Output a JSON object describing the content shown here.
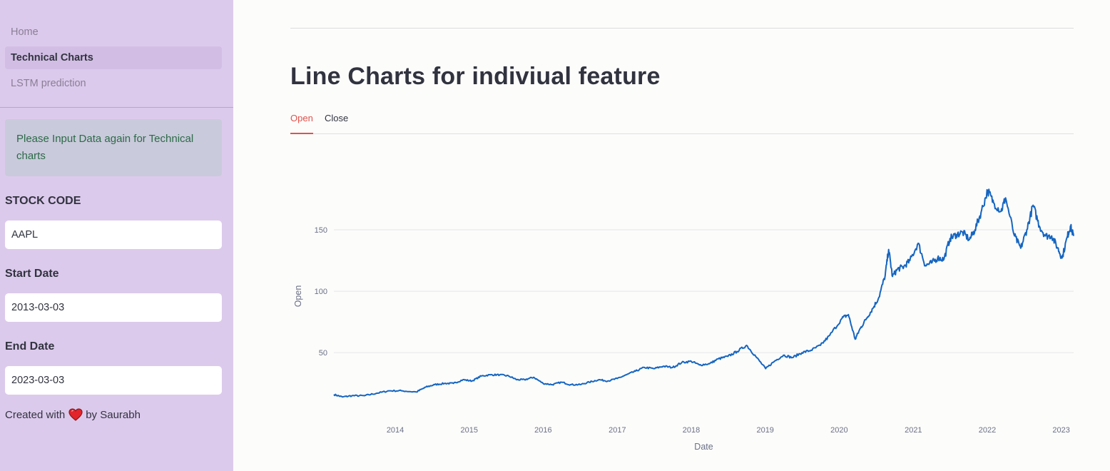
{
  "sidebar": {
    "nav_items": [
      {
        "label": "Home",
        "active": false
      },
      {
        "label": "Technical Charts",
        "active": true
      },
      {
        "label": "LSTM prediction",
        "active": false
      }
    ],
    "info_message": "Please Input Data again for Technical charts",
    "fields": {
      "stock_code": {
        "label": "STOCK CODE",
        "value": "AAPL"
      },
      "start_date": {
        "label": "Start Date",
        "value": "2013-03-03"
      },
      "end_date": {
        "label": "End Date",
        "value": "2023-03-03"
      }
    },
    "credit": {
      "prefix": "Created with",
      "suffix": "by Saurabh",
      "icon": "heart-icon"
    }
  },
  "main": {
    "title": "Line Charts for indiviual feature",
    "tabs": [
      {
        "label": "Open",
        "active": true
      },
      {
        "label": "Close",
        "active": false
      }
    ]
  },
  "colors": {
    "sidebar_bg": "#dccaec",
    "accent": "#e0524b",
    "line": "#1565c0",
    "info_text": "#2c6a48"
  },
  "chart_data": {
    "type": "line",
    "xlabel": "Date",
    "ylabel": "Open",
    "x_ticks": [
      "2014",
      "2015",
      "2016",
      "2017",
      "2018",
      "2019",
      "2020",
      "2021",
      "2022",
      "2023"
    ],
    "y_ticks": [
      50,
      100,
      150
    ],
    "xlim": [
      "2013-03-04",
      "2023-03-03"
    ],
    "ylim": [
      6,
      186
    ],
    "grid": true,
    "legend": "none",
    "series": [
      {
        "x": [
          "2013-03-04",
          "2013-04-15",
          "2013-06-01",
          "2013-08-01",
          "2013-10-01",
          "2013-12-01",
          "2014-02-01",
          "2014-04-15",
          "2014-06-01",
          "2014-07-15",
          "2014-09-01",
          "2014-10-15",
          "2014-12-01",
          "2015-01-15",
          "2015-03-01",
          "2015-04-15",
          "2015-06-01",
          "2015-07-15",
          "2015-08-25",
          "2015-10-01",
          "2015-11-15",
          "2016-01-01",
          "2016-02-15",
          "2016-04-01",
          "2016-05-15",
          "2016-07-01",
          "2016-08-15",
          "2016-10-01",
          "2016-11-15",
          "2017-01-01",
          "2017-02-15",
          "2017-04-01",
          "2017-05-15",
          "2017-07-01",
          "2017-08-15",
          "2017-10-01",
          "2017-11-15",
          "2018-01-01",
          "2018-02-10",
          "2018-04-01",
          "2018-05-15",
          "2018-07-01",
          "2018-08-15",
          "2018-10-01",
          "2018-11-15",
          "2019-01-03",
          "2019-02-15",
          "2019-04-01",
          "2019-05-15",
          "2019-07-01",
          "2019-08-15",
          "2019-10-01",
          "2019-11-15",
          "2020-01-15",
          "2020-02-15",
          "2020-03-20",
          "2020-04-15",
          "2020-05-15",
          "2020-06-15",
          "2020-07-15",
          "2020-08-15",
          "2020-09-01",
          "2020-09-20",
          "2020-10-15",
          "2020-11-15",
          "2020-12-15",
          "2021-01-25",
          "2021-03-01",
          "2021-03-31",
          "2021-05-01",
          "2021-06-01",
          "2021-07-01",
          "2021-08-01",
          "2021-09-01",
          "2021-10-05",
          "2021-11-01",
          "2021-12-01",
          "2022-01-03",
          "2022-02-01",
          "2022-03-10",
          "2022-04-01",
          "2022-05-15",
          "2022-06-15",
          "2022-07-15",
          "2022-08-15",
          "2022-09-15",
          "2022-10-15",
          "2022-11-15",
          "2022-12-15",
          "2023-01-05",
          "2023-02-01",
          "2023-02-15",
          "2023-03-03"
        ],
        "values": [
          16,
          14,
          15,
          15,
          17,
          19,
          19,
          18,
          22,
          24,
          25,
          25,
          28,
          27,
          31,
          32,
          32,
          31,
          28,
          28,
          30,
          25,
          24,
          26,
          24,
          24,
          26,
          28,
          27,
          29,
          32,
          35,
          38,
          37,
          39,
          38,
          42,
          43,
          40,
          41,
          45,
          47,
          51,
          56,
          47,
          37,
          43,
          48,
          46,
          50,
          52,
          56,
          64,
          78,
          81,
          61,
          70,
          78,
          86,
          95,
          113,
          134,
          112,
          118,
          120,
          125,
          139,
          121,
          123,
          127,
          126,
          143,
          146,
          148,
          142,
          150,
          164,
          182,
          172,
          165,
          176,
          145,
          135,
          150,
          170,
          153,
          145,
          145,
          135,
          127,
          145,
          153,
          145
        ]
      }
    ]
  }
}
